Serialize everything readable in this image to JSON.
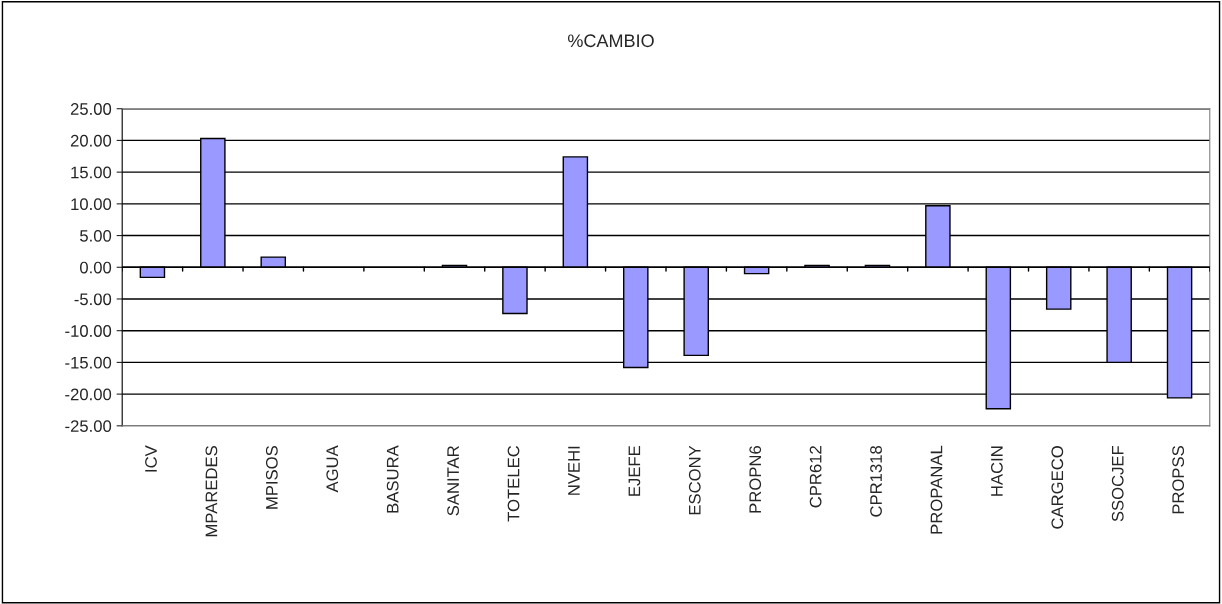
{
  "chart_data": {
    "type": "bar",
    "title": "%CAMBIO",
    "categories": [
      "ICV",
      "MPAREDES",
      "MPISOS",
      "AGUA",
      "BASURA",
      "SANITAR",
      "TOTELEC",
      "NVEHI",
      "EJEFE",
      "ESCONY",
      "PROPN6",
      "CPR612",
      "CPR1318",
      "PROPANAL",
      "HACIN",
      "CARGECO",
      "SSOCJEF",
      "PROPSS"
    ],
    "values": [
      -1.6,
      20.3,
      1.6,
      0,
      0,
      0.3,
      -7.3,
      17.4,
      -15.8,
      -13.9,
      -1.0,
      0.3,
      0.3,
      9.7,
      -22.3,
      -6.6,
      -15.0,
      -20.6
    ],
    "color": "#9999ff",
    "ylim": [
      -25,
      25
    ],
    "yticks": [
      {
        "value": -25,
        "label": "-25.00"
      },
      {
        "value": -20,
        "label": "-20.00"
      },
      {
        "value": -15,
        "label": "-15.00"
      },
      {
        "value": -10,
        "label": "-10.00"
      },
      {
        "value": -5,
        "label": "-5.00"
      },
      {
        "value": 0,
        "label": "0.00"
      },
      {
        "value": 5,
        "label": "5.00"
      },
      {
        "value": 10,
        "label": "10.00"
      },
      {
        "value": 15,
        "label": "15.00"
      },
      {
        "value": 20,
        "label": "20.00"
      },
      {
        "value": 25,
        "label": "25.00"
      }
    ],
    "grid": "y",
    "legend": false
  }
}
